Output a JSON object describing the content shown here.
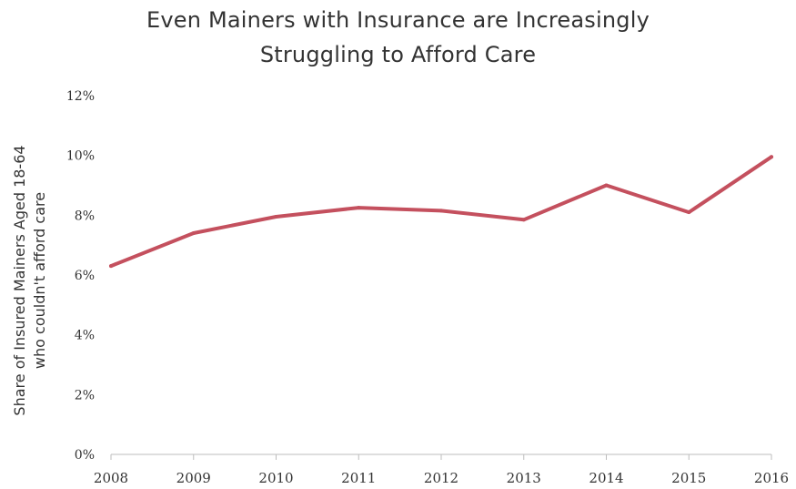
{
  "chart_data": {
    "type": "line",
    "title_lines": [
      "Even Mainers with Insurance are Increasingly",
      "Struggling to Afford Care"
    ],
    "ylabel_lines": [
      "Share of Insured Mainers Aged 18-64",
      "who couldn't afford care"
    ],
    "xlabel": "",
    "x": [
      "2008",
      "2009",
      "2010",
      "2011",
      "2012",
      "2013",
      "2014",
      "2015",
      "2016"
    ],
    "series": [
      {
        "values": [
          6.3,
          7.4,
          7.95,
          8.25,
          8.15,
          7.85,
          9.0,
          8.1,
          9.95
        ]
      }
    ],
    "ylim": [
      0,
      12
    ],
    "yticks": [
      0,
      2,
      4,
      6,
      8,
      10,
      12
    ],
    "ytick_labels": [
      "0%",
      "2%",
      "4%",
      "6%",
      "8%",
      "10%",
      "12%"
    ],
    "grid": false,
    "legend": "none",
    "line_color": "#c4505e"
  }
}
